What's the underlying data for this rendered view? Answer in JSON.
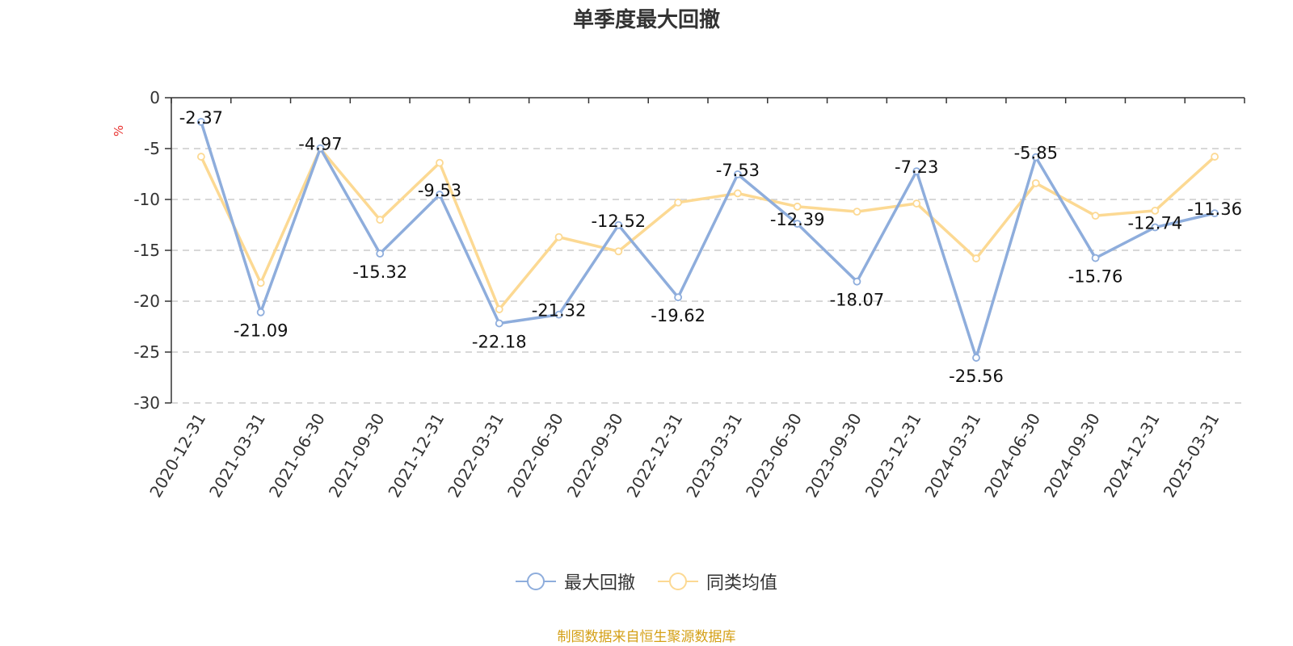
{
  "title": "单季度最大回撤",
  "source": "制图数据来自恒生聚源数据库",
  "colors": {
    "series_main": "#8eaddc",
    "series_avg": "#fcd993",
    "unit": "#e8312f",
    "source": "#d4a017"
  },
  "chart_data": {
    "type": "line",
    "title": "单季度最大回撤",
    "ylabel": "%",
    "ylim": [
      -30,
      0
    ],
    "yticks": [
      0,
      -5,
      -10,
      -15,
      -20,
      -25,
      -30
    ],
    "grid": true,
    "legend_position": "bottom",
    "x": [
      "2020-12-31",
      "2021-03-31",
      "2021-06-30",
      "2021-09-30",
      "2021-12-31",
      "2022-03-31",
      "2022-06-30",
      "2022-09-30",
      "2022-12-31",
      "2023-03-31",
      "2023-06-30",
      "2023-09-30",
      "2023-12-31",
      "2024-03-31",
      "2024-06-30",
      "2024-09-30",
      "2024-12-31",
      "2025-03-31"
    ],
    "series": [
      {
        "name": "最大回撤",
        "color": "#8eaddc",
        "labeled": true,
        "values": [
          -2.37,
          -21.09,
          -4.97,
          -15.32,
          -9.53,
          -22.18,
          -21.32,
          -12.52,
          -19.62,
          -7.53,
          -12.39,
          -18.07,
          -7.23,
          -25.56,
          -5.85,
          -15.76,
          -12.74,
          -11.36
        ]
      },
      {
        "name": "同类均值",
        "color": "#fcd993",
        "labeled": false,
        "values": [
          -5.8,
          -18.2,
          -5.0,
          -12.0,
          -6.4,
          -20.8,
          -13.7,
          -15.1,
          -10.3,
          -9.4,
          -10.7,
          -11.2,
          -10.4,
          -15.8,
          -8.4,
          -11.6,
          -11.1,
          -5.8
        ]
      }
    ]
  }
}
